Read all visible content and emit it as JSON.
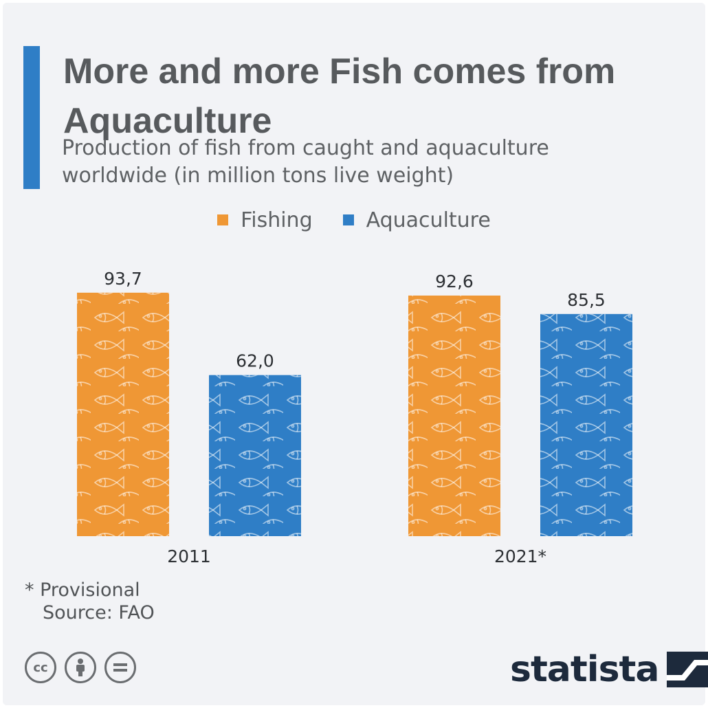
{
  "header": {
    "title_line1": "More and more Fish comes from",
    "title_line2": "Aquaculture",
    "subtitle_line1": "Production of fish from caught and aquaculture",
    "subtitle_line2": "worldwide (in million tons live weight)"
  },
  "colors": {
    "accent": "#2f7ec6",
    "fishing": "#ef9735",
    "aquaculture": "#2f7ec6"
  },
  "chart_data": {
    "type": "bar",
    "categories": [
      "2011",
      "2021*"
    ],
    "series": [
      {
        "name": "Fishing",
        "values": [
          93.7,
          92.6
        ],
        "labels": [
          "93,7",
          "92,6"
        ]
      },
      {
        "name": "Aquaculture",
        "values": [
          62.0,
          85.5
        ],
        "labels": [
          "62,0",
          "85,5"
        ]
      }
    ],
    "legend_position": "top-center",
    "grid": false,
    "ylim": [
      0,
      100
    ],
    "bar_pattern": "fish-icons"
  },
  "footer": {
    "note": "* Provisional",
    "source": "Source: FAO",
    "license_icons": [
      "cc-icon",
      "by-attribution-icon",
      "no-derivatives-icon"
    ],
    "brand": "statista"
  }
}
